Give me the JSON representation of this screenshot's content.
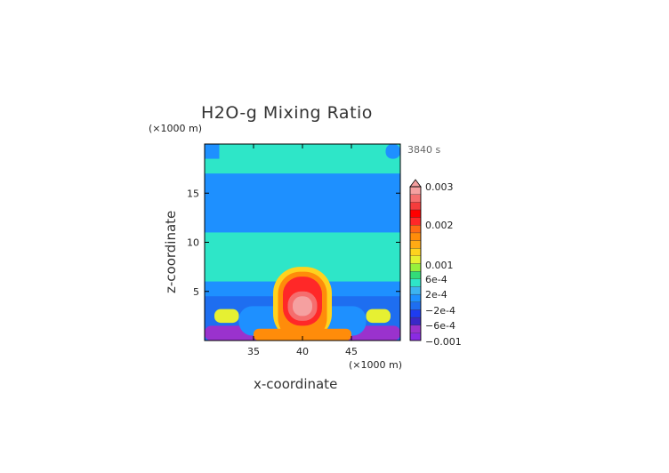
{
  "chart_data": {
    "type": "heatmap",
    "title": "H2O-g Mixing Ratio",
    "time_label": "3840 s",
    "xlabel": "x-coordinate",
    "ylabel": "z-coordinate",
    "x_unit": "(×1000 m)",
    "y_unit": "(×1000 m)",
    "xlim": [
      30,
      50
    ],
    "ylim": [
      0,
      20
    ],
    "x_ticks": [
      {
        "value": 35,
        "label": "35"
      },
      {
        "value": 40,
        "label": "40"
      },
      {
        "value": 45,
        "label": "45"
      }
    ],
    "y_ticks": [
      {
        "value": 5,
        "label": "5"
      },
      {
        "value": 10,
        "label": "10"
      },
      {
        "value": 15,
        "label": "15"
      }
    ],
    "colorbar": {
      "levels": [
        {
          "color": "#8a2be2"
        },
        {
          "color": "#9a32cd"
        },
        {
          "color": "#3a28c8"
        },
        {
          "color": "#1e3cf0"
        },
        {
          "color": "#1e6ef0"
        },
        {
          "color": "#1e90ff"
        },
        {
          "color": "#3cb4f0"
        },
        {
          "color": "#2ee6c8"
        },
        {
          "color": "#32dc78"
        },
        {
          "color": "#96f03c"
        },
        {
          "color": "#e6f032"
        },
        {
          "color": "#ffd21e"
        },
        {
          "color": "#ffaa14"
        },
        {
          "color": "#ff8c0a"
        },
        {
          "color": "#ff6a14"
        },
        {
          "color": "#ff2828"
        },
        {
          "color": "#ff0000"
        },
        {
          "color": "#f53c3c"
        },
        {
          "color": "#f56e6e"
        },
        {
          "color": "#f5a0a0"
        }
      ],
      "labels": [
        "0.003",
        "0.002",
        "0.001",
        "6e-4",
        "2e-4",
        "−2e-4",
        "−6e-4",
        "−0.001"
      ]
    },
    "field_regions_note_free": true,
    "regions": [
      {
        "x0": 30,
        "x1": 50,
        "y0": 0,
        "y1": 20,
        "color": "#1e90ff"
      },
      {
        "x0": 30,
        "x1": 50,
        "y0": 17,
        "y1": 20,
        "color": "#2ee6c8"
      },
      {
        "x0": 30,
        "x1": 31.5,
        "y0": 18.5,
        "y1": 20,
        "color": "#1e90ff"
      },
      {
        "x0": 48.5,
        "x1": 50,
        "y0": 18.5,
        "y1": 20,
        "color": "#1e90ff"
      },
      {
        "x0": 30,
        "x1": 50,
        "y0": 6,
        "y1": 11,
        "color": "#2ee6c8"
      },
      {
        "x0": 30,
        "x1": 50,
        "y0": 4.5,
        "y1": 6,
        "color": "#1e90ff"
      },
      {
        "x0": 30,
        "x1": 50,
        "y0": 0,
        "y1": 4.5,
        "color": "#1e6ef0"
      },
      {
        "x0": 30,
        "x1": 50,
        "y0": 0,
        "y1": 1.5,
        "color": "#9a32cd"
      },
      {
        "x0": 31,
        "x1": 33.5,
        "y0": 1.8,
        "y1": 3.2,
        "color": "#e6f032"
      },
      {
        "x0": 46.5,
        "x1": 49,
        "y0": 1.8,
        "y1": 3.2,
        "color": "#e6f032"
      },
      {
        "x0": 33.5,
        "x1": 46.5,
        "y0": 0.5,
        "y1": 3.5,
        "color": "#1e90ff"
      },
      {
        "x0": 37,
        "x1": 43,
        "y0": 0,
        "y1": 7.5,
        "color": "#ffd21e"
      },
      {
        "x0": 37.5,
        "x1": 42.5,
        "y0": 0,
        "y1": 7,
        "color": "#ff8c0a"
      },
      {
        "x0": 38,
        "x1": 42,
        "y0": 1.5,
        "y1": 6.5,
        "color": "#ff2828"
      },
      {
        "x0": 38.5,
        "x1": 41.5,
        "y0": 2,
        "y1": 5,
        "color": "#f56e6e"
      },
      {
        "x0": 39,
        "x1": 41,
        "y0": 2.5,
        "y1": 4.5,
        "color": "#f5a0a0"
      },
      {
        "x0": 35,
        "x1": 45,
        "y0": 0,
        "y1": 1.2,
        "color": "#ff8c0a"
      }
    ]
  }
}
